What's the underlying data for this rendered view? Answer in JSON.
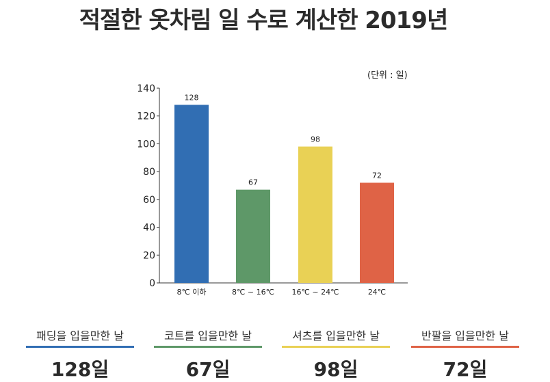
{
  "title": "적절한 옷차림 일 수로 계산한 2019년",
  "chart_data": {
    "type": "bar",
    "unit_note": "(단위 : 일)",
    "categories": [
      "8℃ 이하",
      "8℃ ~ 16℃",
      "16℃ ~ 24℃",
      "24℃"
    ],
    "values": [
      128,
      67,
      98,
      72
    ],
    "colors": [
      "#316eb3",
      "#5e9868",
      "#e9d155",
      "#df6346"
    ],
    "ylim": [
      0,
      140
    ],
    "yticks": [
      0,
      20,
      40,
      60,
      80,
      100,
      120,
      140
    ],
    "title": "",
    "xlabel": "",
    "ylabel": ""
  },
  "summary": [
    {
      "label": "패딩을 입을만한 날",
      "value": "128일",
      "color": "#316eb3"
    },
    {
      "label": "코트를 입을만한 날",
      "value": "67일",
      "color": "#5e9868"
    },
    {
      "label": "셔츠를 입을만한 날",
      "value": "98일",
      "color": "#e9d155"
    },
    {
      "label": "반팔을 입을만한 날",
      "value": "72일",
      "color": "#df6346"
    }
  ]
}
